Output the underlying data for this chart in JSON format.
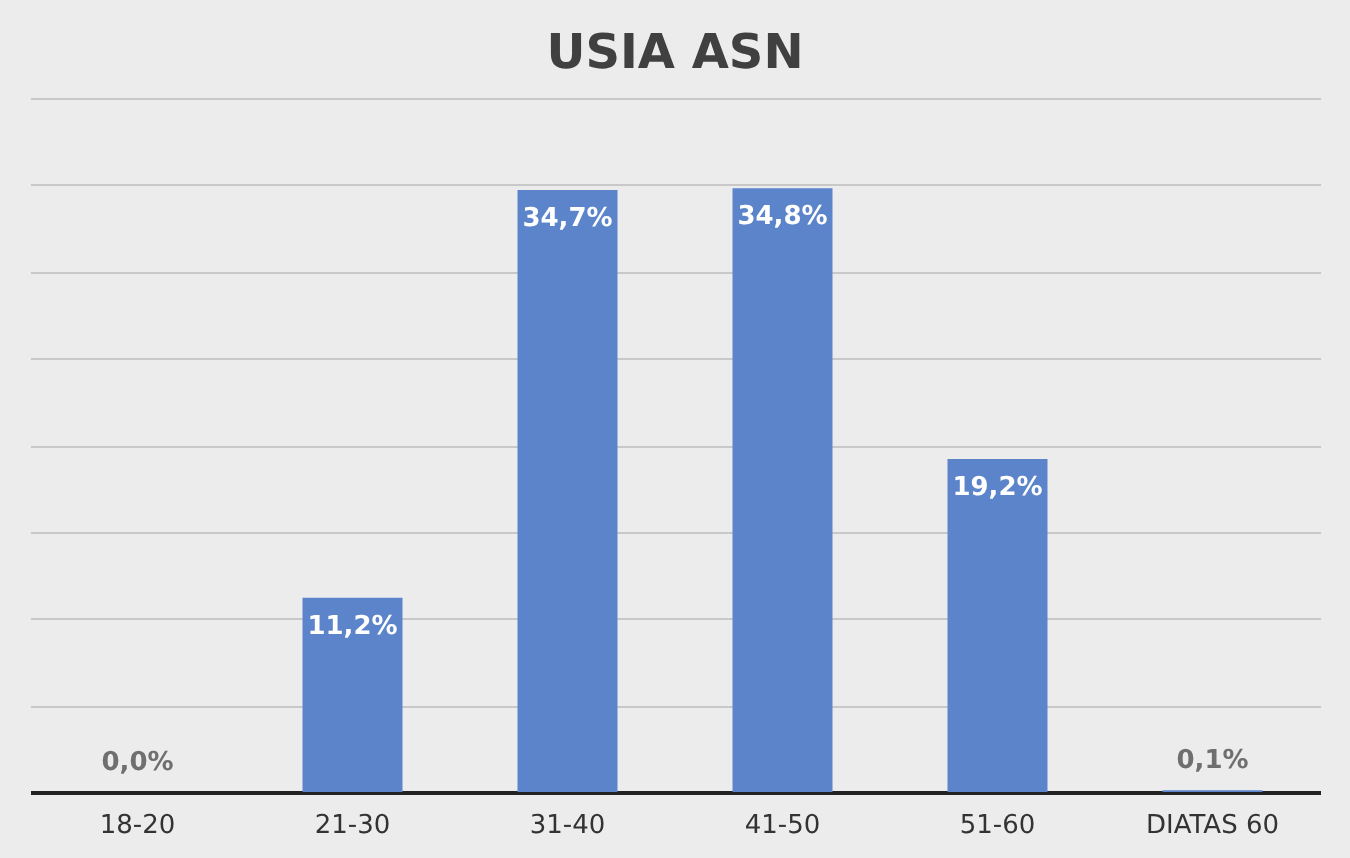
{
  "chart_data": {
    "type": "bar",
    "title": "USIA ASN",
    "categories": [
      "18-20",
      "21-30",
      "31-40",
      "41-50",
      "51-60",
      "DIATAS 60"
    ],
    "values": [
      0.0,
      11.2,
      34.7,
      34.8,
      19.2,
      0.1
    ],
    "value_labels": [
      "0,0%",
      "11,2%",
      "34,7%",
      "34,8%",
      "19,2%",
      "0,1%"
    ],
    "color": "#5b84cb",
    "ylim": [
      0,
      40
    ],
    "yticks": [
      {
        "value": 0,
        "label": null
      },
      {
        "value": 5,
        "label": null
      },
      {
        "value": 10,
        "label": null
      },
      {
        "value": 15,
        "label": null
      },
      {
        "value": 20,
        "label": null
      },
      {
        "value": 25,
        "label": null
      },
      {
        "value": 30,
        "label": null
      },
      {
        "value": 35,
        "label": null
      },
      {
        "value": 40,
        "label": null
      }
    ],
    "grid": "y",
    "tick_labels": "x",
    "legend": false
  }
}
